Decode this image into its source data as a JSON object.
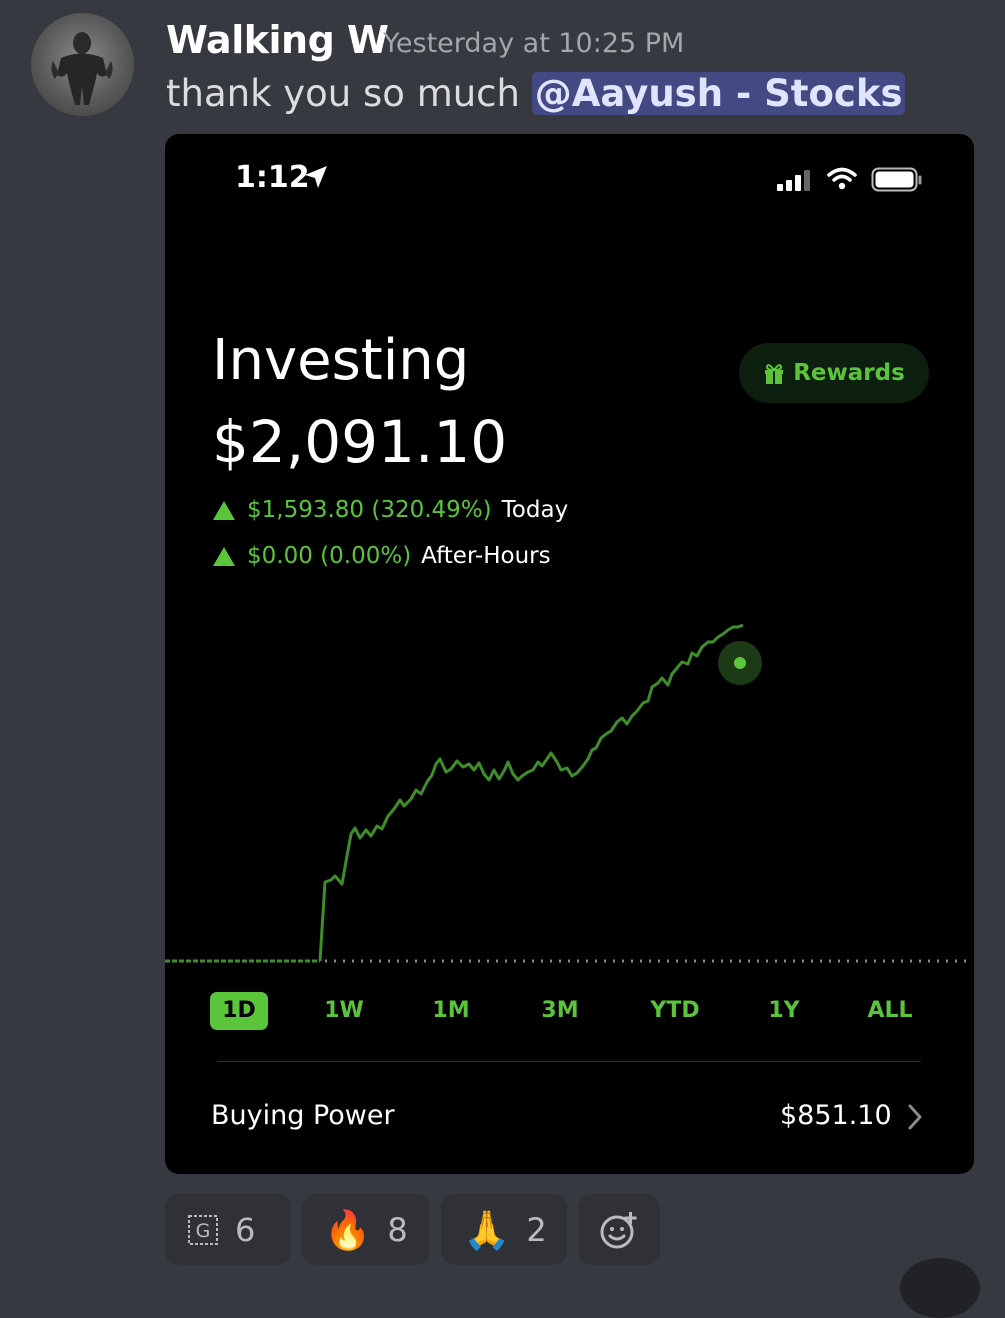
{
  "message": {
    "username": "Walking W",
    "timestamp": "Yesterday at 10:25 PM",
    "text": "thank you so much ",
    "mention": "@Aayush - Stocks"
  },
  "phone": {
    "status_time": "1:12",
    "title": "Investing",
    "balance": "$2,091.10",
    "rewards_label": "Rewards",
    "today_change": "$1,593.80 (320.49%)",
    "today_label": "Today",
    "after_hours_change": "$0.00 (0.00%)",
    "after_hours_label": "After-Hours",
    "ranges": [
      "1D",
      "1W",
      "1M",
      "3M",
      "YTD",
      "1Y",
      "ALL"
    ],
    "active_range": "1D",
    "buying_power_label": "Buying Power",
    "buying_power_value": "$851.10",
    "accent_color": "#5ac53b"
  },
  "reactions": [
    {
      "icon": "g-emote-icon",
      "count": "6"
    },
    {
      "icon": "fire-emoji-icon",
      "emoji": "🔥",
      "count": "8"
    },
    {
      "icon": "pray-emoji-icon",
      "emoji": "🙏",
      "count": "2"
    }
  ]
}
